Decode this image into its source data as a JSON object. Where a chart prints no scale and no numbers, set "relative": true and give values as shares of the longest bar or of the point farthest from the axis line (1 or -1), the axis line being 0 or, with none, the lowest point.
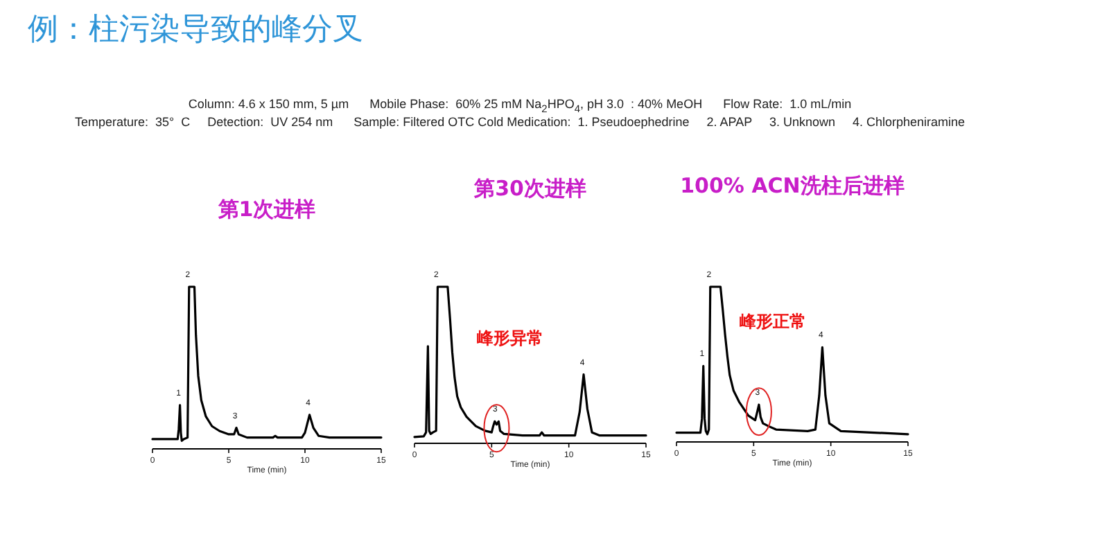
{
  "chart_data": [
    {
      "type": "other",
      "title": "例：柱污染导致的峰分叉",
      "annotations": [
        "Column: 4.6 x 150 mm, 5 µm      Mobile Phase:  60% 25 mM Na$_{2}$HPO$_{4}$, pH 3.0  : 40% MeOH      Flow Rate:  1.0 mL/min",
        "Temperature:  35°  C     Detection:  UV 254 nm      Sample: Filtered OTC Cold Medication:  1. Pseudoephedrine     2. APAP     3. Unknown     4. Chlorpheniramine"
      ]
    },
    {
      "type": "line",
      "title": "第1次进样",
      "xlabel": "Time (min)",
      "xlim": [
        0,
        15
      ],
      "xticks": [
        0,
        5,
        10,
        15
      ],
      "relative": true,
      "color": "#000000",
      "x": [
        0,
        1.65,
        1.72,
        1.8,
        1.86,
        1.92,
        2.05,
        2.3,
        2.4,
        2.75,
        2.85,
        3.0,
        3.2,
        3.5,
        3.9,
        4.4,
        5.0,
        5.35,
        5.5,
        5.65,
        6.2,
        7.9,
        8.05,
        8.2,
        9.8,
        10.0,
        10.3,
        10.55,
        10.9,
        11.6,
        15
      ],
      "values": [
        0.06,
        0.06,
        0.12,
        0.27,
        0.1,
        0.05,
        0.06,
        0.07,
        1,
        1,
        0.7,
        0.45,
        0.3,
        0.2,
        0.14,
        0.11,
        0.09,
        0.09,
        0.13,
        0.09,
        0.07,
        0.07,
        0.08,
        0.07,
        0.07,
        0.1,
        0.21,
        0.13,
        0.08,
        0.07,
        0.07
      ],
      "annotations": [
        {
          "text": "1",
          "x": 1.8,
          "y": 0.27
        },
        {
          "text": "2",
          "x": 2.4,
          "y": 1
        },
        {
          "text": "3",
          "x": 5.5,
          "y": 0.13
        },
        {
          "text": "4",
          "x": 10.3,
          "y": 0.21
        }
      ]
    },
    {
      "type": "line",
      "title": "第30次进样",
      "xlabel": "Time (min)",
      "xlim": [
        0,
        15
      ],
      "xticks": [
        0,
        5,
        10,
        15
      ],
      "relative": true,
      "color": "#000000",
      "x": [
        0,
        0.6,
        0.75,
        0.87,
        0.95,
        1.05,
        1.2,
        1.4,
        1.5,
        2.15,
        2.3,
        2.45,
        2.6,
        2.77,
        3.0,
        3.37,
        3.97,
        4.57,
        5.0,
        5.1,
        5.2,
        5.32,
        5.45,
        5.55,
        5.8,
        7.0,
        8.1,
        8.25,
        8.4,
        10.4,
        10.7,
        10.96,
        11.2,
        11.5,
        12,
        15
      ],
      "values": [
        0.04,
        0.045,
        0.07,
        0.62,
        0.08,
        0.06,
        0.07,
        0.08,
        1,
        1,
        0.8,
        0.58,
        0.42,
        0.3,
        0.23,
        0.17,
        0.11,
        0.08,
        0.07,
        0.11,
        0.14,
        0.12,
        0.14,
        0.08,
        0.06,
        0.05,
        0.05,
        0.07,
        0.05,
        0.05,
        0.2,
        0.44,
        0.22,
        0.07,
        0.05,
        0.05
      ],
      "annotations": [
        {
          "text": "2",
          "x": 1.5,
          "y": 1
        },
        {
          "text": "3",
          "x": 5.32,
          "y": 0.14
        },
        "峰形异常",
        {
          "text": "4",
          "x": 10.96,
          "y": 0.44
        }
      ]
    },
    {
      "type": "line",
      "title": "100% ACN洗柱后进样",
      "xlabel": "Time (min)",
      "xlim": [
        0,
        15
      ],
      "xticks": [
        0,
        5,
        10,
        15
      ],
      "relative": true,
      "color": "#000000",
      "x": [
        0,
        1.55,
        1.65,
        1.74,
        1.82,
        1.9,
        2.0,
        2.1,
        2.19,
        2.85,
        3.0,
        3.15,
        3.3,
        3.45,
        3.7,
        4.05,
        4.65,
        5.1,
        5.2,
        5.34,
        5.45,
        5.6,
        6.0,
        6.45,
        8.5,
        9.0,
        9.25,
        9.45,
        9.65,
        9.9,
        10.65,
        15
      ],
      "values": [
        0.06,
        0.06,
        0.15,
        0.49,
        0.15,
        0.07,
        0.05,
        0.08,
        1,
        1,
        0.85,
        0.69,
        0.55,
        0.43,
        0.33,
        0.26,
        0.17,
        0.14,
        0.18,
        0.24,
        0.16,
        0.12,
        0.1,
        0.08,
        0.07,
        0.08,
        0.3,
        0.61,
        0.3,
        0.12,
        0.07,
        0.05
      ],
      "annotations": [
        {
          "text": "1",
          "x": 1.74,
          "y": 0.49
        },
        {
          "text": "2",
          "x": 2.19,
          "y": 1
        },
        {
          "text": "3",
          "x": 5.34,
          "y": 0.24
        },
        "峰形正常",
        {
          "text": "4",
          "x": 9.45,
          "y": 0.61
        }
      ]
    }
  ]
}
